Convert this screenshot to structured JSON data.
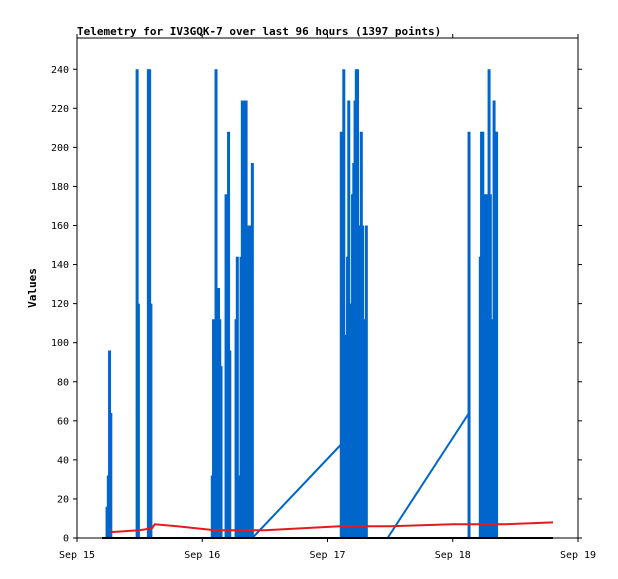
{
  "chart_data": {
    "type": "line",
    "title": "Telemetry for IV3GQK-7 over last 96 hours (1397 points)",
    "ylabel": "Values",
    "xlabel": "",
    "x_ticks": [
      "Sep 15",
      "Sep 16",
      "Sep 17",
      "Sep 18",
      "Sep 19"
    ],
    "x_unit": "days since Sep 15 00:00",
    "xlim": [
      0,
      4
    ],
    "ylim": [
      0,
      256
    ],
    "y_ticks": [
      0,
      20,
      40,
      60,
      80,
      100,
      120,
      140,
      160,
      180,
      200,
      220,
      240
    ],
    "grid": false,
    "series": [
      {
        "name": "",
        "color": "#0066cc",
        "spikes": [
          [
            0.24,
            16
          ],
          [
            0.25,
            32
          ],
          [
            0.26,
            96
          ],
          [
            0.27,
            64
          ],
          [
            0.48,
            240
          ],
          [
            0.49,
            120
          ],
          [
            0.57,
            240
          ],
          [
            0.58,
            240
          ],
          [
            0.59,
            120
          ],
          [
            1.08,
            32
          ],
          [
            1.09,
            112
          ],
          [
            1.11,
            240
          ],
          [
            1.12,
            64
          ],
          [
            1.13,
            128
          ],
          [
            1.14,
            112
          ],
          [
            1.15,
            88
          ],
          [
            1.19,
            176
          ],
          [
            1.2,
            128
          ],
          [
            1.21,
            208
          ],
          [
            1.22,
            96
          ],
          [
            1.27,
            112
          ],
          [
            1.28,
            144
          ],
          [
            1.29,
            32
          ],
          [
            1.31,
            144
          ],
          [
            1.32,
            224
          ],
          [
            1.33,
            176
          ],
          [
            1.34,
            224
          ],
          [
            1.35,
            224
          ],
          [
            1.36,
            32
          ],
          [
            1.37,
            160
          ],
          [
            1.38,
            160
          ],
          [
            1.39,
            88
          ],
          [
            1.4,
            192
          ],
          [
            2.11,
            208
          ],
          [
            2.12,
            112
          ],
          [
            2.13,
            240
          ],
          [
            2.14,
            104
          ],
          [
            2.16,
            144
          ],
          [
            2.17,
            224
          ],
          [
            2.18,
            64
          ],
          [
            2.19,
            120
          ],
          [
            2.2,
            176
          ],
          [
            2.21,
            192
          ],
          [
            2.22,
            224
          ],
          [
            2.23,
            240
          ],
          [
            2.24,
            240
          ],
          [
            2.25,
            160
          ],
          [
            2.26,
            80
          ],
          [
            2.27,
            208
          ],
          [
            2.28,
            160
          ],
          [
            2.29,
            112
          ],
          [
            2.3,
            40
          ],
          [
            2.31,
            160
          ],
          [
            3.13,
            208
          ],
          [
            3.22,
            144
          ],
          [
            3.23,
            208
          ],
          [
            3.24,
            208
          ],
          [
            3.25,
            112
          ],
          [
            3.26,
            176
          ],
          [
            3.27,
            104
          ],
          [
            3.28,
            176
          ],
          [
            3.29,
            240
          ],
          [
            3.3,
            176
          ],
          [
            3.31,
            112
          ],
          [
            3.32,
            48
          ],
          [
            3.33,
            224
          ],
          [
            3.34,
            208
          ],
          [
            3.35,
            208
          ]
        ],
        "connectors": [
          [
            [
              1.4,
              0
            ],
            [
              2.11,
              48
            ]
          ],
          [
            [
              2.48,
              0
            ],
            [
              3.13,
              64
            ]
          ]
        ]
      },
      {
        "name": "",
        "color": "#e41a1c",
        "points": [
          [
            0.27,
            3
          ],
          [
            0.5,
            4
          ],
          [
            0.6,
            5
          ],
          [
            0.62,
            7
          ],
          [
            0.8,
            6
          ],
          [
            1.1,
            4
          ],
          [
            1.5,
            4
          ],
          [
            2.1,
            6
          ],
          [
            2.35,
            6
          ],
          [
            2.5,
            6
          ],
          [
            3.0,
            7
          ],
          [
            3.4,
            7
          ],
          [
            3.8,
            8
          ]
        ]
      },
      {
        "name": "",
        "color": "#000000",
        "points": [
          [
            0.2,
            0
          ],
          [
            3.8,
            0
          ]
        ]
      }
    ]
  }
}
